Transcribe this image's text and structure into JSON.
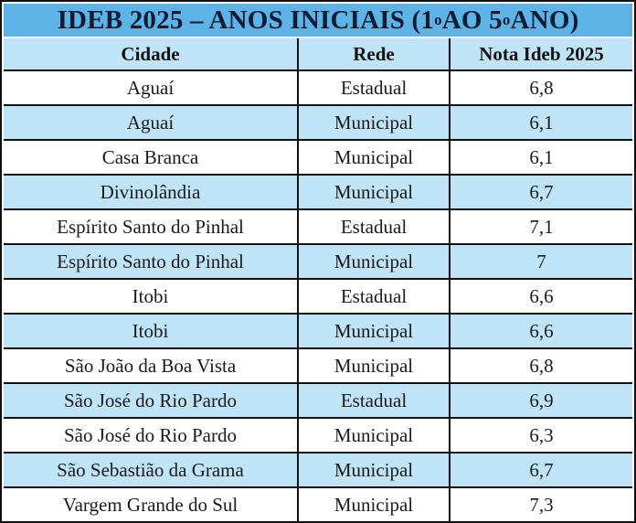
{
  "title": {
    "prefix": "IDEB 2025 – ANOS INICIAIS (1",
    "sup1": "o",
    "middle": " AO 5",
    "sup2": "o",
    "suffix": " ANO)"
  },
  "columns": [
    "Cidade",
    "Rede",
    "Nota Ideb 2025"
  ],
  "rows": [
    {
      "cidade": "Aguaí",
      "rede": "Estadual",
      "nota": "6,8"
    },
    {
      "cidade": "Aguaí",
      "rede": "Municipal",
      "nota": "6,1"
    },
    {
      "cidade": "Casa Branca",
      "rede": "Municipal",
      "nota": "6,1"
    },
    {
      "cidade": "Divinolândia",
      "rede": "Municipal",
      "nota": "6,7"
    },
    {
      "cidade": "Espírito Santo do Pinhal",
      "rede": "Estadual",
      "nota": "7,1"
    },
    {
      "cidade": "Espírito Santo do Pinhal",
      "rede": "Municipal",
      "nota": "7"
    },
    {
      "cidade": "Itobi",
      "rede": "Estadual",
      "nota": "6,6"
    },
    {
      "cidade": "Itobi",
      "rede": "Municipal",
      "nota": "6,6"
    },
    {
      "cidade": "São João da Boa Vista",
      "rede": "Municipal",
      "nota": "6,8"
    },
    {
      "cidade": "São José do Rio Pardo",
      "rede": "Estadual",
      "nota": "6,9"
    },
    {
      "cidade": "São José do Rio Pardo",
      "rede": "Municipal",
      "nota": "6,3"
    },
    {
      "cidade": "São Sebastião da Grama",
      "rede": "Municipal",
      "nota": "6,7"
    },
    {
      "cidade": "Vargem Grande do Sul",
      "rede": "Municipal",
      "nota": "7,3"
    }
  ],
  "colors": {
    "title_background": "#5db3e6",
    "stripe": "#bfe3f7",
    "border": "#111111"
  }
}
